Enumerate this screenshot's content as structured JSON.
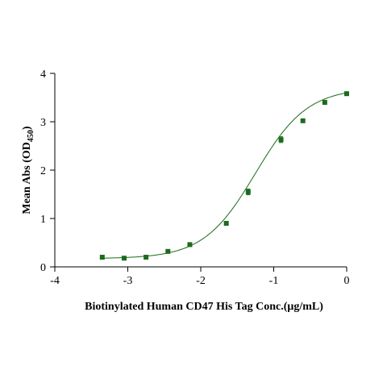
{
  "chart_data": {
    "type": "scatter",
    "xlabel": "Biotinylated  Human CD47 His Tag Conc.(μg/mL)",
    "ylabel_main": "Mean Abs (OD",
    "ylabel_sub": "450",
    "ylabel_end": ")",
    "xlim": [
      -4,
      0
    ],
    "ylim": [
      0,
      4
    ],
    "x_ticks": [
      -4,
      -3,
      -2,
      -1,
      0
    ],
    "x_tick_labels": [
      "-4",
      "-3",
      "-2",
      "-1",
      "0"
    ],
    "y_ticks": [
      0,
      1,
      2,
      3,
      4
    ],
    "y_tick_labels": [
      "0",
      "1",
      "2",
      "3",
      "4"
    ],
    "grid": false,
    "series": [
      {
        "x": [
          -3.35,
          -3.05,
          -2.75,
          -2.45,
          -2.15,
          -1.65,
          -1.35,
          -0.9,
          -0.6,
          -0.3,
          0.0
        ],
        "y": [
          0.2,
          0.18,
          0.2,
          0.32,
          0.46,
          0.9,
          1.55,
          2.63,
          3.02,
          3.4,
          3.58
        ],
        "err": [
          0.02,
          0.02,
          0.02,
          0.02,
          0.03,
          0.03,
          0.06,
          0.06,
          0.03,
          0.02,
          0.03
        ],
        "fit": {
          "bottom": 0.17,
          "top": 3.7,
          "logEC50": -1.25,
          "hill": 1.22
        }
      }
    ],
    "colors": {
      "marker": "#1b6b1b",
      "curve": "#1b6b1b",
      "axis": "#000000"
    }
  }
}
